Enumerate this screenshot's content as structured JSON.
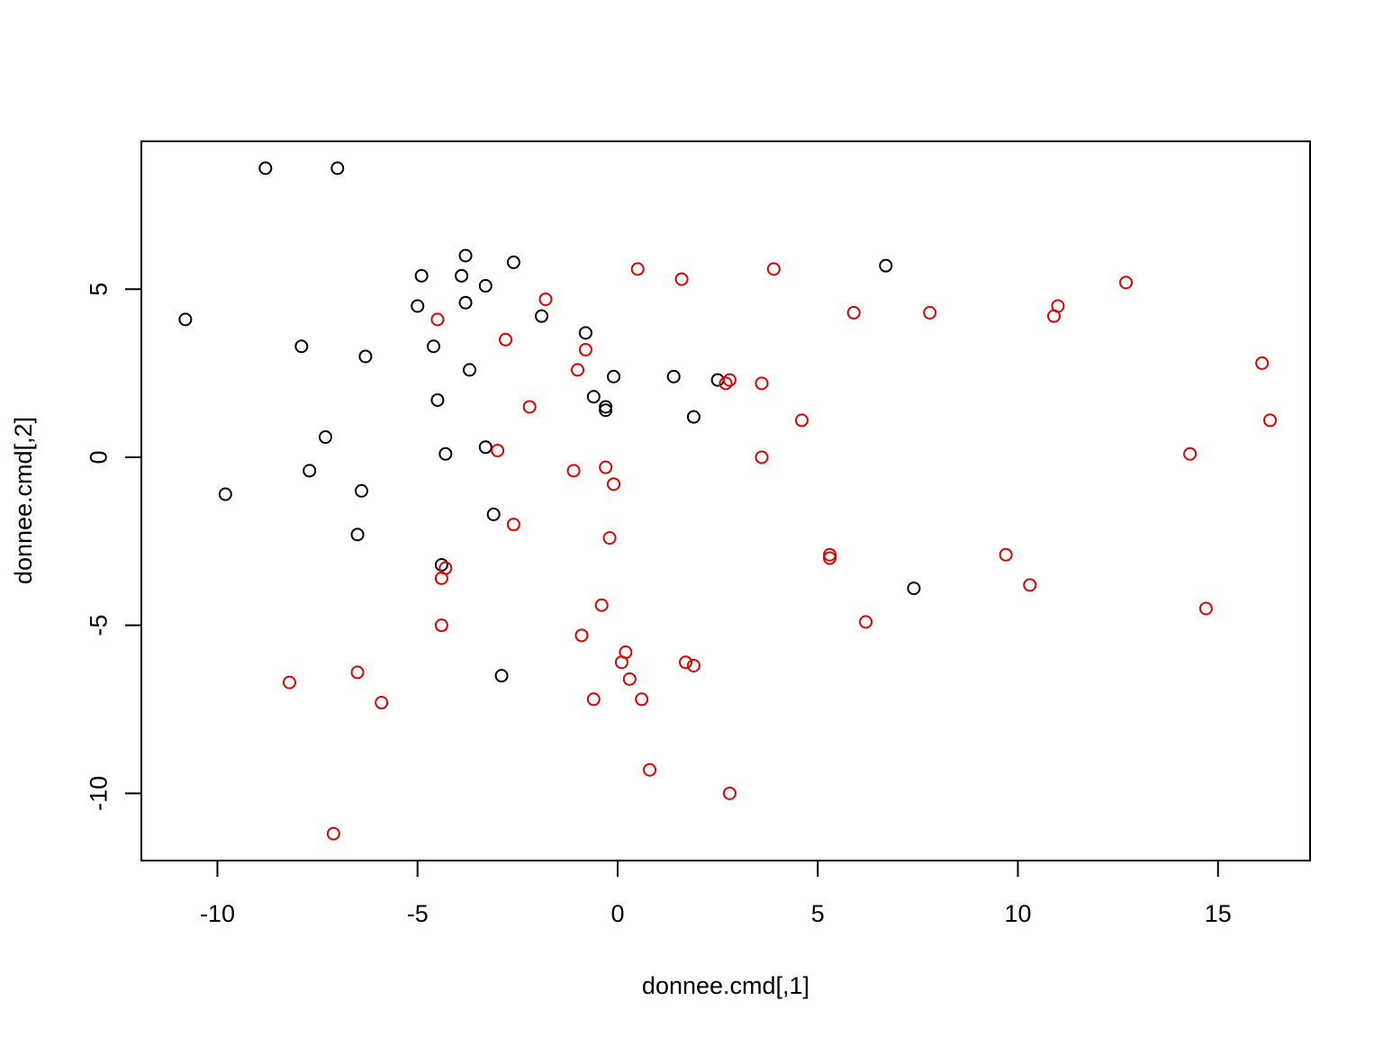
{
  "chart_data": {
    "type": "scatter",
    "title": "",
    "xlabel": "donnee.cmd[,1]",
    "ylabel": "donnee.cmd[,2]",
    "xlim": [
      -11.9,
      17.3
    ],
    "ylim": [
      -12.0,
      9.4
    ],
    "xticks": [
      -10,
      -5,
      0,
      5,
      10,
      15
    ],
    "yticks": [
      -10,
      -5,
      0,
      5
    ],
    "xtick_labels": [
      "-10",
      "-5",
      "0",
      "5",
      "10",
      "15"
    ],
    "ytick_labels": [
      "-10",
      "-5",
      "0",
      "5"
    ],
    "grid": false,
    "marker": "open-circle",
    "series": [
      {
        "color": "#000000",
        "points": [
          [
            -8.8,
            8.6
          ],
          [
            -7.0,
            8.6
          ],
          [
            -10.8,
            4.1
          ],
          [
            -4.9,
            5.4
          ],
          [
            -3.9,
            5.4
          ],
          [
            -3.8,
            6.0
          ],
          [
            -3.3,
            5.1
          ],
          [
            -2.6,
            5.8
          ],
          [
            -5.0,
            4.5
          ],
          [
            -3.8,
            4.6
          ],
          [
            -7.9,
            3.3
          ],
          [
            -4.6,
            3.3
          ],
          [
            -6.3,
            3.0
          ],
          [
            -1.9,
            4.2
          ],
          [
            -0.8,
            3.7
          ],
          [
            -3.7,
            2.6
          ],
          [
            -0.1,
            2.4
          ],
          [
            1.4,
            2.4
          ],
          [
            2.5,
            2.3
          ],
          [
            -4.5,
            1.7
          ],
          [
            -0.6,
            1.8
          ],
          [
            -0.3,
            1.5
          ],
          [
            -0.3,
            1.4
          ],
          [
            1.9,
            1.2
          ],
          [
            -7.3,
            0.6
          ],
          [
            -3.3,
            0.3
          ],
          [
            -4.3,
            0.1
          ],
          [
            -7.7,
            -0.4
          ],
          [
            -9.8,
            -1.1
          ],
          [
            -6.4,
            -1.0
          ],
          [
            -3.1,
            -1.7
          ],
          [
            -6.5,
            -2.3
          ],
          [
            -4.4,
            -3.2
          ],
          [
            -2.9,
            -6.5
          ],
          [
            6.7,
            5.7
          ],
          [
            7.4,
            -3.9
          ]
        ]
      },
      {
        "color": "#e00000",
        "points": [
          [
            0.5,
            5.6
          ],
          [
            1.6,
            5.3
          ],
          [
            3.9,
            5.6
          ],
          [
            -1.8,
            4.7
          ],
          [
            -4.5,
            4.1
          ],
          [
            5.9,
            4.3
          ],
          [
            7.8,
            4.3
          ],
          [
            11.0,
            4.5
          ],
          [
            10.9,
            4.2
          ],
          [
            12.7,
            5.2
          ],
          [
            -2.8,
            3.5
          ],
          [
            -0.8,
            3.2
          ],
          [
            -1.0,
            2.6
          ],
          [
            2.7,
            2.2
          ],
          [
            2.8,
            2.3
          ],
          [
            3.6,
            2.2
          ],
          [
            -2.2,
            1.5
          ],
          [
            4.6,
            1.1
          ],
          [
            16.1,
            2.8
          ],
          [
            16.3,
            1.1
          ],
          [
            14.3,
            0.1
          ],
          [
            -3.0,
            0.2
          ],
          [
            3.6,
            0.0
          ],
          [
            -1.1,
            -0.4
          ],
          [
            -0.3,
            -0.3
          ],
          [
            -0.1,
            -0.8
          ],
          [
            -2.6,
            -2.0
          ],
          [
            -0.2,
            -2.4
          ],
          [
            5.3,
            -2.9
          ],
          [
            5.3,
            -3.0
          ],
          [
            9.7,
            -2.9
          ],
          [
            10.3,
            -3.8
          ],
          [
            -4.3,
            -3.3
          ],
          [
            -4.4,
            -3.6
          ],
          [
            -0.4,
            -4.4
          ],
          [
            -4.4,
            -5.0
          ],
          [
            6.2,
            -4.9
          ],
          [
            14.7,
            -4.5
          ],
          [
            -0.9,
            -5.3
          ],
          [
            0.2,
            -5.8
          ],
          [
            0.1,
            -6.1
          ],
          [
            0.3,
            -6.6
          ],
          [
            1.7,
            -6.1
          ],
          [
            1.9,
            -6.2
          ],
          [
            -8.2,
            -6.7
          ],
          [
            -6.5,
            -6.4
          ],
          [
            -5.9,
            -7.3
          ],
          [
            -0.6,
            -7.2
          ],
          [
            0.6,
            -7.2
          ],
          [
            0.8,
            -9.3
          ],
          [
            2.8,
            -10.0
          ],
          [
            -7.1,
            -11.2
          ]
        ]
      }
    ]
  }
}
